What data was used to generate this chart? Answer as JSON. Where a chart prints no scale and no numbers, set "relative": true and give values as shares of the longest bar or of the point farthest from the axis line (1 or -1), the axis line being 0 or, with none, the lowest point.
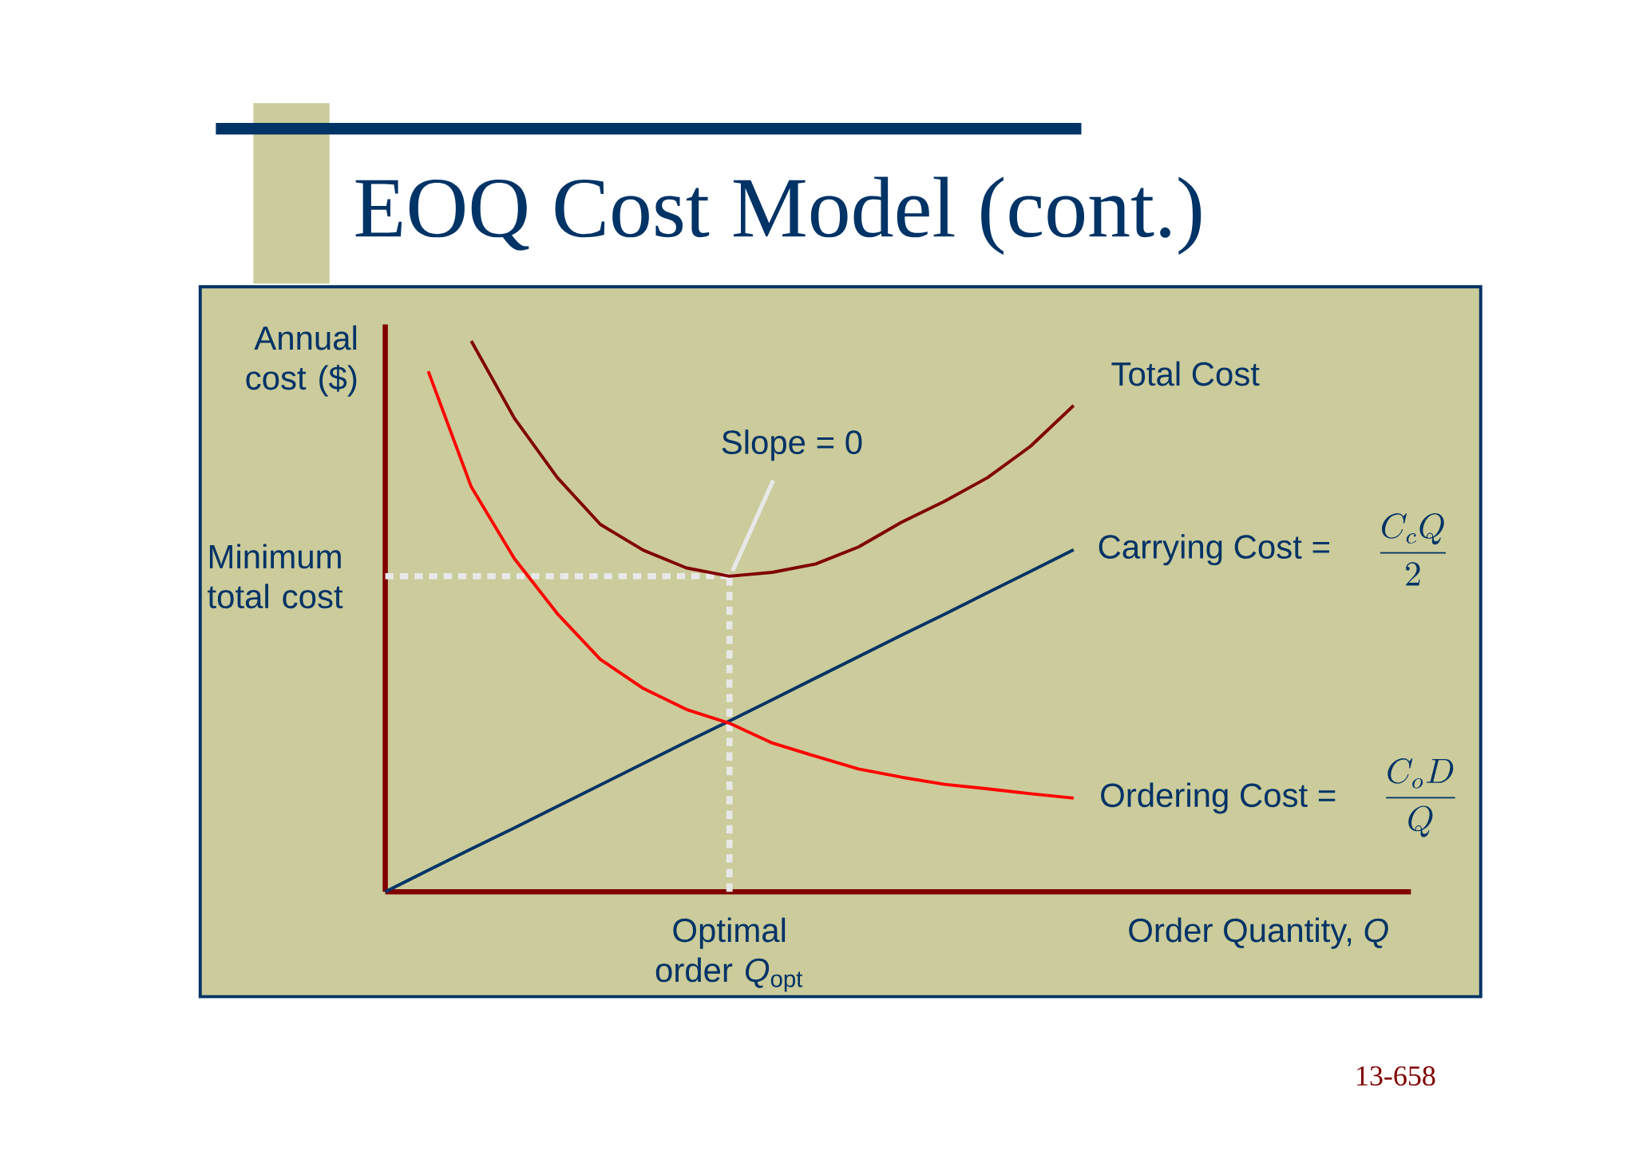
{
  "chart_data": {
    "type": "line",
    "title": "EOQ Cost Model (cont.)",
    "xlabel": "Order Quantity, *Q*",
    "ylabel": "Annual cost ($)",
    "relative": true,
    "categories": [
      null,
      null,
      null,
      null,
      null,
      null,
      null,
      null,
      null,
      null,
      null,
      null,
      null,
      null,
      null,
      null,
      null
    ],
    "series": [
      {
        "name": "Total Cost",
        "color": "#800000",
        "values": [
          null,
          null,
          1.0,
          0.86,
          0.752,
          0.667,
          0.62,
          0.588,
          0.573,
          0.58,
          0.595,
          0.626,
          0.671,
          0.709,
          0.752,
          0.809,
          0.883
        ]
      },
      {
        "name": "Carrying Cost =",
        "color": "#003366",
        "values": [
          0,
          0.039,
          0.078,
          0.116,
          0.155,
          0.194,
          0.233,
          0.272,
          0.31,
          0.349,
          0.388,
          0.427,
          0.466,
          0.504,
          0.543,
          0.582,
          0.621
        ]
      },
      {
        "name": "Ordering Cost =",
        "color": "#ff0000",
        "values": [
          null,
          0.945,
          0.735,
          0.605,
          0.505,
          0.422,
          0.369,
          0.331,
          0.306,
          0.27,
          0.246,
          0.223,
          0.208,
          0.195,
          0.187,
          0.178,
          0.17
        ]
      }
    ],
    "ref_lines": [
      {
        "axis": "y",
        "value": 0.573,
        "label": "Minimum total cost",
        "color": "#e8e8e8",
        "line_style": "dotted"
      }
    ],
    "annotations": [
      "Slope = 0",
      "\\dfrac{C_c Q}{2}",
      "\\dfrac{C_o D}{Q}",
      "13-658",
      "Optimal order *Q*$_{opt}$"
    ]
  }
}
